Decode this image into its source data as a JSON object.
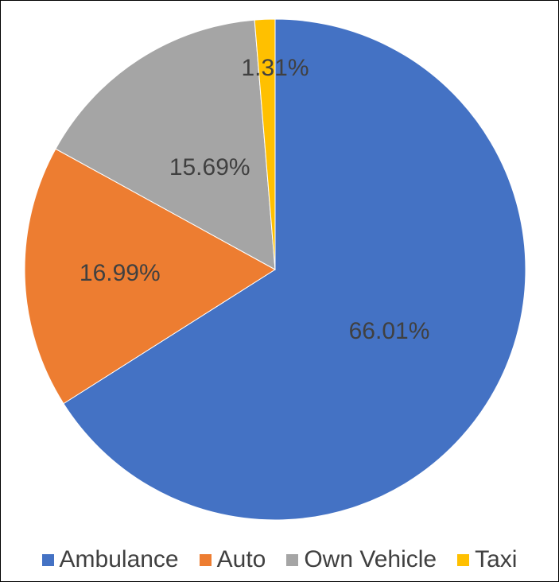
{
  "chart_data": {
    "type": "pie",
    "title": "",
    "start": "top",
    "direction": "clockwise",
    "legend": "bottom",
    "slices": [
      {
        "name": "Ambulance",
        "value": 66.01,
        "label": "66.01%",
        "color": "#4472C4"
      },
      {
        "name": "Auto",
        "value": 16.99,
        "label": "16.99%",
        "color": "#ED7D31"
      },
      {
        "name": "Own Vehicle",
        "value": 15.69,
        "label": "15.69%",
        "color": "#A5A5A5"
      },
      {
        "name": "Taxi",
        "value": 1.31,
        "label": "1.31%",
        "color": "#FFC000"
      }
    ]
  }
}
